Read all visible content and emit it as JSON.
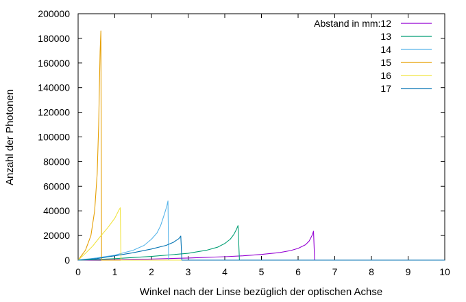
{
  "chart_data": {
    "type": "line",
    "title": "",
    "xlabel": "Winkel nach der Linse bezüglich der optischen Achse",
    "ylabel": "Anzahl der Photonen",
    "xlim": [
      0,
      10
    ],
    "ylim": [
      0,
      200000
    ],
    "xticks": [
      "0",
      "1",
      "2",
      "3",
      "4",
      "5",
      "6",
      "7",
      "8",
      "9",
      "10"
    ],
    "yticks": [
      "0",
      "20000",
      "40000",
      "60000",
      "80000",
      "100000",
      "120000",
      "140000",
      "160000",
      "180000",
      "200000"
    ],
    "grid": false,
    "legend_placement": "top-right",
    "legend_title": "Abstand in mm:",
    "series": [
      {
        "name": "12",
        "color": "#9400d3",
        "x": [
          0,
          1,
          2,
          3,
          4,
          4.5,
          5,
          5.5,
          5.8,
          6.0,
          6.2,
          6.3,
          6.38,
          6.42,
          6.45,
          7,
          10
        ],
        "y": [
          0,
          300,
          900,
          1700,
          2800,
          3500,
          4600,
          6200,
          7800,
          9500,
          12500,
          15500,
          20000,
          23500,
          0,
          0,
          0
        ]
      },
      {
        "name": "13",
        "color": "#009e73",
        "x": [
          0,
          0.5,
          1,
          2,
          3,
          3.5,
          3.8,
          4.0,
          4.15,
          4.25,
          4.32,
          4.36,
          4.4,
          5,
          10
        ],
        "y": [
          0,
          500,
          1200,
          3000,
          5500,
          8000,
          10500,
          13500,
          17000,
          21000,
          25000,
          28000,
          0,
          0,
          0
        ]
      },
      {
        "name": "14",
        "color": "#56b4e9",
        "x": [
          0,
          0.5,
          1,
          1.5,
          1.8,
          2.0,
          2.15,
          2.25,
          2.35,
          2.42,
          2.45,
          2.47,
          3,
          10
        ],
        "y": [
          0,
          1800,
          4000,
          8000,
          12000,
          17000,
          22000,
          28000,
          37000,
          44000,
          48000,
          0,
          0,
          0
        ]
      },
      {
        "name": "15",
        "color": "#e69f00",
        "x": [
          0,
          0.2,
          0.35,
          0.45,
          0.52,
          0.56,
          0.58,
          0.6,
          0.62,
          0.63,
          0.64,
          1,
          10
        ],
        "y": [
          0,
          8000,
          20000,
          40000,
          70000,
          110000,
          140000,
          170000,
          186000,
          90000,
          0,
          0,
          0
        ]
      },
      {
        "name": "16",
        "color": "#f0e442",
        "x": [
          0,
          0.2,
          0.4,
          0.6,
          0.8,
          1.0,
          1.1,
          1.15,
          1.17,
          2,
          10
        ],
        "y": [
          0,
          5500,
          11500,
          19000,
          26000,
          34000,
          40000,
          42500,
          0,
          0,
          0
        ]
      },
      {
        "name": "17",
        "color": "#0072b2",
        "x": [
          0,
          0.5,
          1,
          1.5,
          2,
          2.4,
          2.6,
          2.75,
          2.8,
          2.83,
          3.5,
          10
        ],
        "y": [
          0,
          1200,
          3500,
          6000,
          9000,
          12000,
          14500,
          17500,
          19500,
          0,
          0,
          0
        ]
      }
    ]
  }
}
